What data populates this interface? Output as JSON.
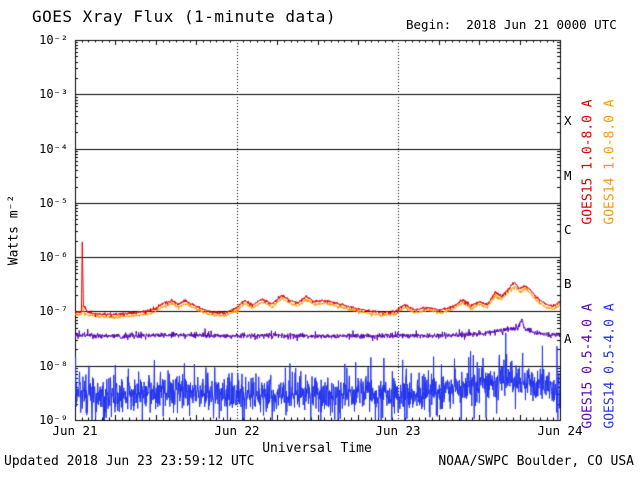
{
  "chart_data": {
    "type": "line",
    "title": "GOES Xray Flux (1-minute data)",
    "begin_label": "Begin:  2018 Jun 21 0000 UTC",
    "xlabel": "Universal Time",
    "ylabel": "Watts m⁻²",
    "x_ticks": [
      "Jun 21",
      "Jun 22",
      "Jun 23",
      "Jun 24"
    ],
    "y_tick_labels": [
      "10⁻²",
      "10⁻³",
      "10⁻⁴",
      "10⁻⁵",
      "10⁻⁶",
      "10⁻⁷",
      "10⁻⁸",
      "10⁻⁹"
    ],
    "y_log_range": [
      -9,
      -2
    ],
    "x_range_days": [
      0,
      3
    ],
    "grid": {
      "h_decade_lines": true,
      "v_dotted_days": [
        1,
        2
      ]
    },
    "flare_classes": [
      {
        "label": "X",
        "log_center": -3.5
      },
      {
        "label": "M",
        "log_center": -4.5
      },
      {
        "label": "C",
        "log_center": -5.5
      },
      {
        "label": "B",
        "log_center": -6.5
      },
      {
        "label": "A",
        "log_center": -7.5
      }
    ],
    "units": {
      "x": "days since begin",
      "y": "log10(Watts m-2)"
    },
    "series": [
      {
        "name": "GOES15 1.0-8.0 A",
        "color": "#dd0000",
        "noise_log_sigma": 0.012,
        "points_log10": [
          [
            0.0,
            -7.0
          ],
          [
            0.02,
            -7.02
          ],
          [
            0.04,
            -7.0
          ],
          [
            0.045,
            -5.72
          ],
          [
            0.052,
            -6.9
          ],
          [
            0.08,
            -7.02
          ],
          [
            0.15,
            -7.05
          ],
          [
            0.25,
            -7.06
          ],
          [
            0.35,
            -7.03
          ],
          [
            0.45,
            -7.0
          ],
          [
            0.5,
            -6.95
          ],
          [
            0.55,
            -6.84
          ],
          [
            0.6,
            -6.8
          ],
          [
            0.64,
            -6.87
          ],
          [
            0.68,
            -6.8
          ],
          [
            0.72,
            -6.86
          ],
          [
            0.78,
            -6.95
          ],
          [
            0.85,
            -7.02
          ],
          [
            0.93,
            -7.03
          ],
          [
            1.0,
            -6.93
          ],
          [
            1.05,
            -6.8
          ],
          [
            1.1,
            -6.88
          ],
          [
            1.16,
            -6.77
          ],
          [
            1.22,
            -6.87
          ],
          [
            1.28,
            -6.7
          ],
          [
            1.33,
            -6.8
          ],
          [
            1.38,
            -6.85
          ],
          [
            1.43,
            -6.72
          ],
          [
            1.48,
            -6.82
          ],
          [
            1.55,
            -6.8
          ],
          [
            1.62,
            -6.85
          ],
          [
            1.7,
            -6.92
          ],
          [
            1.8,
            -6.98
          ],
          [
            1.9,
            -7.02
          ],
          [
            1.98,
            -7.0
          ],
          [
            2.04,
            -6.88
          ],
          [
            2.1,
            -6.97
          ],
          [
            2.18,
            -6.93
          ],
          [
            2.26,
            -6.97
          ],
          [
            2.33,
            -6.92
          ],
          [
            2.4,
            -6.78
          ],
          [
            2.45,
            -6.9
          ],
          [
            2.5,
            -6.82
          ],
          [
            2.55,
            -6.88
          ],
          [
            2.6,
            -6.65
          ],
          [
            2.64,
            -6.72
          ],
          [
            2.68,
            -6.58
          ],
          [
            2.72,
            -6.47
          ],
          [
            2.75,
            -6.58
          ],
          [
            2.79,
            -6.53
          ],
          [
            2.83,
            -6.65
          ],
          [
            2.87,
            -6.78
          ],
          [
            2.92,
            -6.88
          ],
          [
            2.96,
            -6.9
          ],
          [
            3.0,
            -6.82
          ]
        ]
      },
      {
        "name": "GOES14 1.0-8.0 A",
        "color": "#ff9900",
        "noise_log_sigma": 0.012,
        "points_log10": [
          [
            0.0,
            -7.06
          ],
          [
            0.04,
            -7.06
          ],
          [
            0.045,
            -6.9
          ],
          [
            0.06,
            -7.05
          ],
          [
            0.15,
            -7.1
          ],
          [
            0.25,
            -7.11
          ],
          [
            0.35,
            -7.08
          ],
          [
            0.45,
            -7.05
          ],
          [
            0.5,
            -7.0
          ],
          [
            0.55,
            -6.9
          ],
          [
            0.6,
            -6.86
          ],
          [
            0.64,
            -6.92
          ],
          [
            0.68,
            -6.86
          ],
          [
            0.72,
            -6.91
          ],
          [
            0.78,
            -7.0
          ],
          [
            0.85,
            -7.07
          ],
          [
            0.93,
            -7.08
          ],
          [
            1.0,
            -6.98
          ],
          [
            1.05,
            -6.86
          ],
          [
            1.1,
            -6.93
          ],
          [
            1.16,
            -6.83
          ],
          [
            1.22,
            -6.92
          ],
          [
            1.28,
            -6.76
          ],
          [
            1.33,
            -6.85
          ],
          [
            1.38,
            -6.9
          ],
          [
            1.43,
            -6.78
          ],
          [
            1.48,
            -6.87
          ],
          [
            1.55,
            -6.85
          ],
          [
            1.62,
            -6.9
          ],
          [
            1.7,
            -6.97
          ],
          [
            1.8,
            -7.03
          ],
          [
            1.9,
            -7.07
          ],
          [
            1.98,
            -7.05
          ],
          [
            2.04,
            -6.93
          ],
          [
            2.1,
            -7.02
          ],
          [
            2.18,
            -6.98
          ],
          [
            2.26,
            -7.02
          ],
          [
            2.33,
            -6.97
          ],
          [
            2.4,
            -6.84
          ],
          [
            2.45,
            -6.95
          ],
          [
            2.5,
            -6.87
          ],
          [
            2.55,
            -6.93
          ],
          [
            2.6,
            -6.71
          ],
          [
            2.64,
            -6.78
          ],
          [
            2.68,
            -6.64
          ],
          [
            2.72,
            -6.54
          ],
          [
            2.75,
            -6.64
          ],
          [
            2.79,
            -6.59
          ],
          [
            2.83,
            -6.71
          ],
          [
            2.87,
            -6.84
          ],
          [
            2.92,
            -6.93
          ],
          [
            2.96,
            -6.95
          ],
          [
            3.0,
            -6.88
          ]
        ]
      },
      {
        "name": "GOES15 0.5-4.0 A",
        "color": "#5506b0",
        "noise_log_sigma": 0.022,
        "points_log10": [
          [
            0.0,
            -7.44
          ],
          [
            0.3,
            -7.46
          ],
          [
            0.6,
            -7.43
          ],
          [
            0.9,
            -7.45
          ],
          [
            1.2,
            -7.44
          ],
          [
            1.5,
            -7.46
          ],
          [
            1.8,
            -7.45
          ],
          [
            2.1,
            -7.45
          ],
          [
            2.3,
            -7.44
          ],
          [
            2.5,
            -7.42
          ],
          [
            2.6,
            -7.36
          ],
          [
            2.68,
            -7.34
          ],
          [
            2.74,
            -7.3
          ],
          [
            2.765,
            -7.12
          ],
          [
            2.78,
            -7.32
          ],
          [
            2.85,
            -7.4
          ],
          [
            2.95,
            -7.43
          ],
          [
            3.0,
            -7.43
          ]
        ]
      },
      {
        "name": "GOES14 0.5-4.0 A",
        "color": "#2233ee",
        "noise_log_sigma": 0.16,
        "points_log10": [
          [
            0.0,
            -8.45
          ],
          [
            0.15,
            -8.52
          ],
          [
            0.3,
            -8.55
          ],
          [
            0.45,
            -8.5
          ],
          [
            0.6,
            -8.45
          ],
          [
            0.75,
            -8.52
          ],
          [
            0.9,
            -8.5
          ],
          [
            1.05,
            -8.52
          ],
          [
            1.2,
            -8.55
          ],
          [
            1.35,
            -8.5
          ],
          [
            1.5,
            -8.54
          ],
          [
            1.65,
            -8.52
          ],
          [
            1.8,
            -8.5
          ],
          [
            1.95,
            -8.54
          ],
          [
            2.1,
            -8.52
          ],
          [
            2.25,
            -8.48
          ],
          [
            2.4,
            -8.4
          ],
          [
            2.5,
            -8.3
          ],
          [
            2.6,
            -8.28
          ],
          [
            2.7,
            -8.22
          ],
          [
            2.8,
            -8.28
          ],
          [
            2.9,
            -8.38
          ],
          [
            3.0,
            -8.42
          ]
        ]
      }
    ]
  },
  "footer": {
    "updated": "Updated 2018 Jun 23 23:59:12 UTC",
    "source": "NOAA/SWPC Boulder, CO USA"
  }
}
